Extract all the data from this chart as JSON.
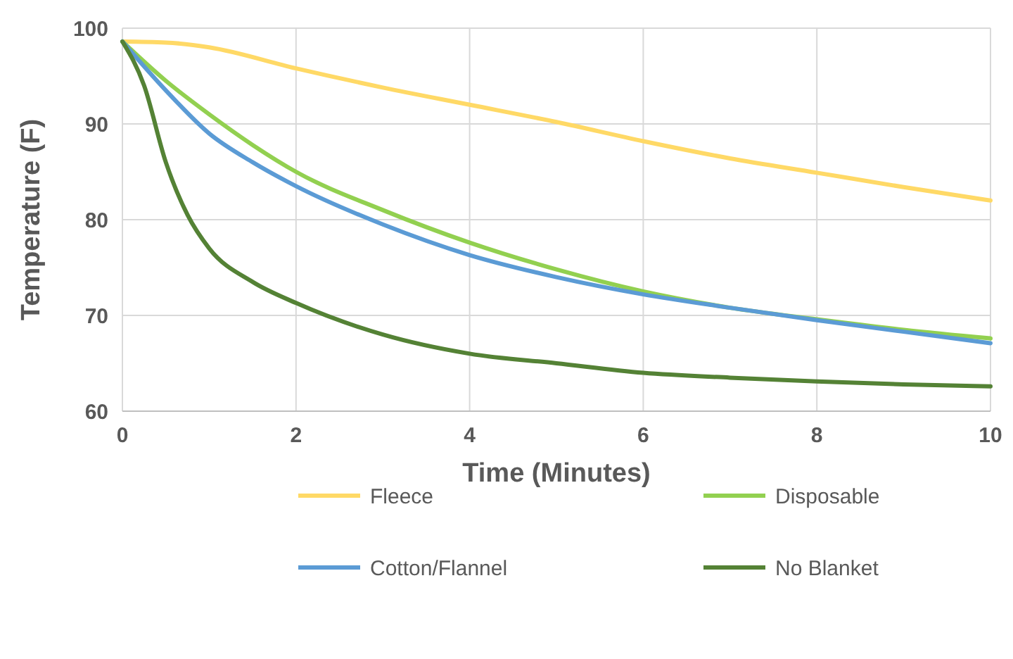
{
  "chart_data": {
    "type": "line",
    "xlabel": "Time (Minutes)",
    "ylabel": "Temperature (F)",
    "xlim": [
      0,
      10
    ],
    "xticks": [
      0,
      2,
      4,
      6,
      8,
      10
    ],
    "ylim": [
      60,
      100
    ],
    "yticks": [
      60,
      70,
      80,
      90,
      100
    ],
    "grid": true,
    "legend": "bottom",
    "line_style": "solid",
    "marker": "none",
    "series": [
      {
        "name": "Fleece",
        "color": "#ffd966",
        "x": [
          0,
          0.5,
          1,
          2,
          3,
          4,
          5,
          6,
          7,
          8,
          9,
          10
        ],
        "values": [
          98.6,
          98.5,
          98,
          95.8,
          93.8,
          92,
          90.2,
          88.2,
          86.4,
          84.9,
          83.4,
          82
        ]
      },
      {
        "name": "Disposable",
        "color": "#92d050",
        "x": [
          0,
          0.5,
          1,
          1.5,
          2,
          3,
          4,
          5,
          6,
          7,
          8,
          9,
          10
        ],
        "values": [
          98.6,
          94.5,
          91,
          87.8,
          85,
          81,
          77.6,
          74.8,
          72.5,
          70.8,
          69.6,
          68.5,
          67.6
        ]
      },
      {
        "name": "Cotton/Flannel",
        "color": "#5b9bd5",
        "x": [
          0,
          0.5,
          1,
          1.5,
          2,
          3,
          4,
          5,
          6,
          7,
          8,
          9,
          10
        ],
        "values": [
          98.6,
          93.5,
          89,
          86,
          83.5,
          79.5,
          76.3,
          74,
          72.2,
          70.8,
          69.5,
          68.3,
          67.1
        ]
      },
      {
        "name": "No Blanket",
        "color": "#548235",
        "x": [
          0,
          0.25,
          0.5,
          0.75,
          1,
          1.5,
          2,
          3,
          4,
          5,
          6,
          7,
          8,
          9,
          10
        ],
        "values": [
          98.6,
          94,
          86,
          80.5,
          77,
          73.5,
          71.3,
          68,
          66,
          65,
          64,
          63.5,
          63.1,
          62.8,
          62.6
        ]
      }
    ]
  }
}
